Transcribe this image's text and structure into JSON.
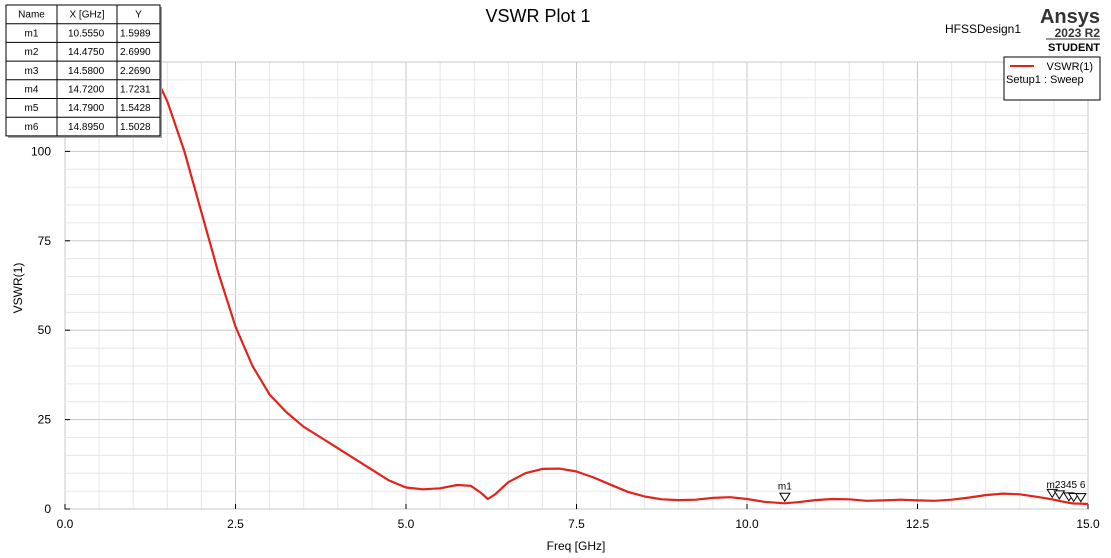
{
  "header": {
    "title": "VSWR Plot 1",
    "design_name": "HFSSDesign1",
    "brand": "Ansys",
    "version": "2023 R2",
    "edition": "STUDENT"
  },
  "marker_table": {
    "columns": [
      "Name",
      "X [GHz]",
      "Y"
    ],
    "rows": [
      [
        "m1",
        "10.5550",
        "1.5989"
      ],
      [
        "m2",
        "14.4750",
        "2.6990"
      ],
      [
        "m3",
        "14.5800",
        "2.2690"
      ],
      [
        "m4",
        "14.7200",
        "1.7231"
      ],
      [
        "m5",
        "14.7900",
        "1.5428"
      ],
      [
        "m6",
        "14.8950",
        "1.5028"
      ]
    ]
  },
  "legend": {
    "entries": [
      {
        "name": "VSWR(1)",
        "color": "#e2231a"
      },
      {
        "name": "Setup1 : Sweep"
      }
    ]
  },
  "chart_data": {
    "type": "line",
    "title": "VSWR Plot 1",
    "xlabel": "Freq [GHz]",
    "ylabel": "VSWR(1)",
    "xlim": [
      0,
      15
    ],
    "ylim": [
      0,
      125
    ],
    "x_ticks": [
      "0.0",
      "2.5",
      "5.0",
      "7.5",
      "10.0",
      "12.5",
      "15.0"
    ],
    "x_tick_values": [
      0,
      2.5,
      5,
      7.5,
      10,
      12.5,
      15
    ],
    "y_ticks": [
      "0",
      "25",
      "50",
      "75",
      "100"
    ],
    "y_tick_values": [
      0,
      25,
      50,
      75,
      100
    ],
    "grid": true,
    "series": [
      {
        "name": "VSWR(1)",
        "color": "#e2231a",
        "x": [
          1.35,
          1.5,
          1.75,
          2.0,
          2.25,
          2.5,
          2.75,
          3.0,
          3.25,
          3.5,
          3.75,
          4.0,
          4.25,
          4.5,
          4.75,
          5.0,
          5.25,
          5.5,
          5.75,
          5.95,
          6.1,
          6.2,
          6.3,
          6.5,
          6.75,
          7.0,
          7.25,
          7.5,
          7.75,
          8.0,
          8.25,
          8.5,
          8.75,
          9.0,
          9.25,
          9.5,
          9.75,
          10.0,
          10.25,
          10.55,
          10.75,
          11.0,
          11.25,
          11.5,
          11.75,
          12.0,
          12.25,
          12.5,
          12.75,
          13.0,
          13.25,
          13.5,
          13.75,
          14.0,
          14.25,
          14.475,
          14.58,
          14.72,
          14.79,
          14.895,
          15.0
        ],
        "y": [
          120,
          114,
          100,
          83,
          66,
          51,
          40,
          32,
          27,
          23,
          20,
          17,
          14,
          11,
          8,
          6,
          5.5,
          5.8,
          6.7,
          6.5,
          4.5,
          2.8,
          4.0,
          7.5,
          10.0,
          11.2,
          11.3,
          10.5,
          8.8,
          6.8,
          4.8,
          3.5,
          2.7,
          2.5,
          2.6,
          3.1,
          3.3,
          2.8,
          2.0,
          1.6,
          1.9,
          2.5,
          2.8,
          2.7,
          2.3,
          2.4,
          2.6,
          2.4,
          2.3,
          2.6,
          3.2,
          3.9,
          4.3,
          4.1,
          3.4,
          2.7,
          2.27,
          1.72,
          1.54,
          1.5,
          1.4
        ]
      }
    ],
    "markers": [
      {
        "name": "m1",
        "x": 10.555,
        "y": 1.5989
      },
      {
        "name": "m2",
        "x": 14.475,
        "y": 2.699
      },
      {
        "name": "m3",
        "x": 14.58,
        "y": 2.269
      },
      {
        "name": "m4",
        "x": 14.72,
        "y": 1.7231
      },
      {
        "name": "m5",
        "x": 14.79,
        "y": 1.5428
      },
      {
        "name": "m6",
        "x": 14.895,
        "y": 1.5028
      }
    ],
    "marker_overlap_label": "m2345 6"
  }
}
